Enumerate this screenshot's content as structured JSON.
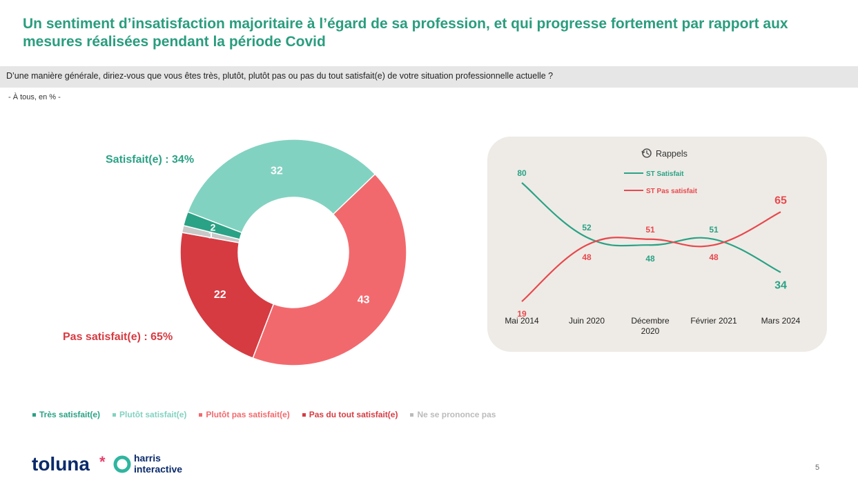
{
  "title": "Un sentiment d’insatisfaction majoritaire à l’égard de sa profession, et qui progresse fortement par rapport aux mesures réalisées pendant la période Covid",
  "question": "D’une manière générale, diriez-vous que vous êtes très, plutôt, plutôt pas ou pas du tout satisfait(e) de votre situation professionnelle actuelle ?",
  "base_note": "- À tous, en % -",
  "colors": {
    "title": "#2a9d7e",
    "tres_satisfait": "#2aa285",
    "plutot_satisfait": "#82d2c1",
    "plutot_pas": "#f2696d",
    "pas_du_tout": "#d63b42",
    "nspp": "#c8c8c8",
    "satisfait_label": "#2aa285",
    "pas_satisfait_label": "#d63b42"
  },
  "labels": {
    "satisfait": "Satisfait(e) : 34%",
    "pas_satisfait": "Pas satisfait(e) : 65%"
  },
  "legend": [
    {
      "label": "Très satisfait(e)",
      "color": "#2aa285"
    },
    {
      "label": "Plutôt satisfait(e)",
      "color": "#82d2c1"
    },
    {
      "label": "Plutôt pas satisfait(e)",
      "color": "#f2696d"
    },
    {
      "label": "Pas du tout satisfait(e)",
      "color": "#d63b42"
    },
    {
      "label": "Ne se prononce pas",
      "color": "#bbbbbb"
    }
  ],
  "footer": {
    "brand_left": "toluna",
    "brand_right_line1": "harris",
    "brand_right_line2": "interactive",
    "page_number": "5",
    "logo_icon": "ring-logo-icon"
  },
  "chart_data": [
    {
      "type": "pie",
      "donut": true,
      "slices": [
        {
          "name": "Plutôt satisfait(e)",
          "value": 32,
          "label": "32",
          "color": "#82d2c1"
        },
        {
          "name": "Plutôt pas satisfait(e)",
          "value": 43,
          "label": "43",
          "color": "#f2696d"
        },
        {
          "name": "Pas du tout satisfait(e)",
          "value": 22,
          "label": "22",
          "color": "#d63b42"
        },
        {
          "name": "Ne se prononce pas",
          "value": 1,
          "label": "1",
          "color": "#c8c8c8"
        },
        {
          "name": "Très satisfait(e)",
          "value": 2,
          "label": "2",
          "color": "#2aa285"
        }
      ]
    },
    {
      "type": "line",
      "title": "Rappels",
      "title_icon": "history-clock-icon",
      "categories": [
        "Mai 2014",
        "Juin 2020",
        "Décembre 2020",
        "Février 2021",
        "Mars 2024"
      ],
      "series": [
        {
          "name": "ST Satisfait",
          "values": [
            80,
            52,
            48,
            51,
            34
          ],
          "color": "#2aa285"
        },
        {
          "name": "ST Pas satisfait",
          "values": [
            19,
            48,
            51,
            48,
            65
          ],
          "color": "#e8484d"
        }
      ]
    }
  ]
}
